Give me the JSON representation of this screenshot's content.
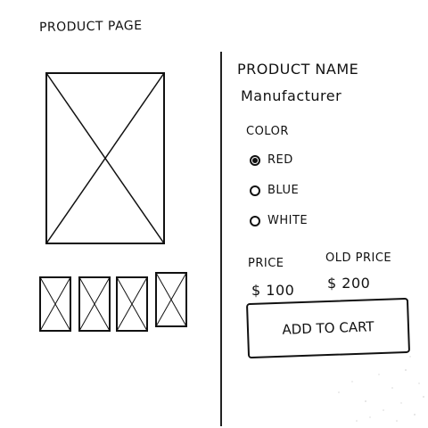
{
  "page": {
    "title": "PRODUCT PAGE"
  },
  "product": {
    "name": "PRODUCT NAME",
    "manufacturer": "Manufacturer"
  },
  "color": {
    "label": "COLOR",
    "options": [
      {
        "label": "RED",
        "selected": true
      },
      {
        "label": "BLUE",
        "selected": false
      },
      {
        "label": "WHITE",
        "selected": false
      }
    ]
  },
  "pricing": {
    "price_label": "PRICE",
    "price_value": "$ 100",
    "old_price_label": "OLD PRICE",
    "old_price_value": "$ 200"
  },
  "cart": {
    "button_label": "ADD TO CART"
  },
  "gallery": {
    "thumbnail_count": 4
  }
}
